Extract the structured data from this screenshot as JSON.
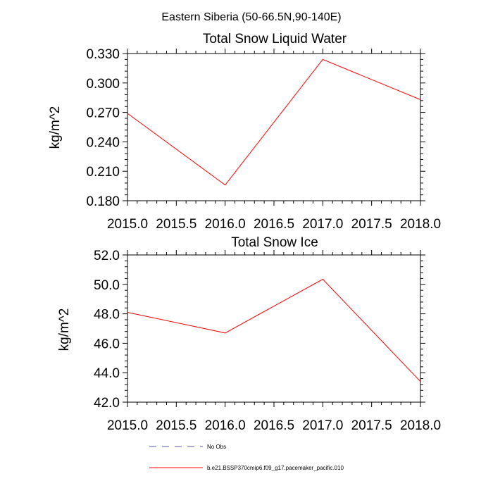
{
  "figure_title": "Eastern Siberia (50-66.5N,90-140E)",
  "chart_data": [
    {
      "type": "line",
      "title": "Total Snow Liquid Water",
      "xlabel": "",
      "ylabel": "kg/m^2",
      "xlim": [
        2015.0,
        2018.0
      ],
      "ylim": [
        0.18,
        0.33
      ],
      "x_ticks": [
        "2015.0",
        "2015.5",
        "2016.0",
        "2016.5",
        "2017.0",
        "2017.5",
        "2018.0"
      ],
      "y_ticks": [
        "0.180",
        "0.210",
        "0.240",
        "0.270",
        "0.300",
        "0.330"
      ],
      "x": [
        2015.0,
        2016.0,
        2017.0,
        2018.0
      ],
      "series": [
        {
          "name": "b.e21.BSSP370cmip6.f09_g17.pacemaker_pacific.010",
          "color": "#ff0000",
          "values": [
            0.269,
            0.196,
            0.324,
            0.283
          ]
        }
      ]
    },
    {
      "type": "line",
      "title": "Total Snow Ice",
      "xlabel": "",
      "ylabel": "kg/m^2",
      "xlim": [
        2015.0,
        2018.0
      ],
      "ylim": [
        42.0,
        52.0
      ],
      "x_ticks": [
        "2015.0",
        "2015.5",
        "2016.0",
        "2016.5",
        "2017.0",
        "2017.5",
        "2018.0"
      ],
      "y_ticks": [
        "42.0",
        "44.0",
        "46.0",
        "48.0",
        "50.0",
        "52.0"
      ],
      "x": [
        2015.0,
        2016.0,
        2017.0,
        2018.0
      ],
      "series": [
        {
          "name": "b.e21.BSSP370cmip6.f09_g17.pacemaker_pacific.010",
          "color": "#ff0000",
          "values": [
            48.1,
            46.7,
            50.35,
            43.4
          ]
        }
      ]
    }
  ],
  "legend": [
    {
      "label": "No Obs",
      "color": "#5555aa",
      "style": "dashed"
    },
    {
      "label": "b.e21.BSSP370cmip6.f09_g17.pacemaker_pacific.010",
      "color": "#ff0000",
      "style": "solid"
    }
  ]
}
